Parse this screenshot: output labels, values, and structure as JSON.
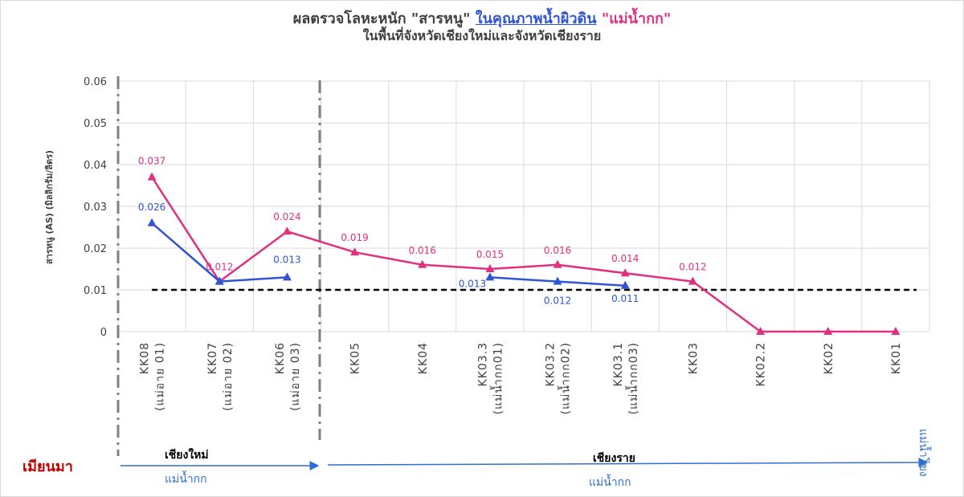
{
  "title": {
    "part1": "ผลตรวจโลหะหนัก \"สารหนู\" ",
    "part2": "ในคุณภาพน้ำผิวดิน",
    "part3": " \"แม่น้ำกก\""
  },
  "subtitle": "ในพื้นที่จังหวัดเชียงใหม่และจังหวัดเชียงราย",
  "regions": {
    "myanmar": "เมียนมา",
    "chiang_mai": "เชียงใหม่",
    "chiang_mai_river": "แม่น้ำกก",
    "chiang_rai": "เชียงราย",
    "chiang_rai_river": "แม่น้ำกก",
    "mekong": "แม่น้ำโขง"
  },
  "colors": {
    "pink": "#e0307f",
    "blue": "#2f55d4",
    "arrow": "#2f6fd0",
    "threshold": "#000000",
    "grid": "#d9d9d9"
  },
  "chart_data": {
    "type": "line",
    "ylabel": "สารหนู (AS) (มิลลิกรัม/ลิตร)",
    "ylim": [
      0,
      0.06
    ],
    "yticks": [
      "0",
      "0.01",
      "0.02",
      "0.03",
      "0.04",
      "0.05",
      "0.06"
    ],
    "grid": true,
    "categories": [
      "KK08\n(แม่อาย 01)",
      "KK07\n(แม่อาย 02)",
      "KK06\n(แม่อาย 03)",
      "KK05",
      "KK04",
      "KK03.3\n(แม่น้ำกก01)",
      "KK03.2\n(แม่น้ำกก02)",
      "KK03.1\n(แม่น้ำกก03)",
      "KK03",
      "KK02.2",
      "KK02",
      "KK01"
    ],
    "series": [
      {
        "color": "#e0307f",
        "values": [
          0.037,
          0.012,
          0.024,
          0.019,
          0.016,
          0.015,
          0.016,
          0.014,
          0.012,
          0,
          0,
          0
        ],
        "labels": [
          "0.037",
          "0.012",
          "0.024",
          "0.019",
          "0.016",
          "0.015",
          "0.016",
          "0.014",
          "0.012",
          "",
          "",
          ""
        ]
      },
      {
        "color": "#2f55d4",
        "values": [
          0.026,
          0.012,
          0.013,
          null,
          null,
          0.013,
          0.012,
          0.011,
          null,
          null,
          null,
          null
        ],
        "labels": [
          "0.026",
          "",
          "0.013",
          "",
          "",
          "0.013",
          "0.012",
          "0.011",
          "",
          "",
          "",
          ""
        ]
      }
    ],
    "threshold": 0.01
  }
}
